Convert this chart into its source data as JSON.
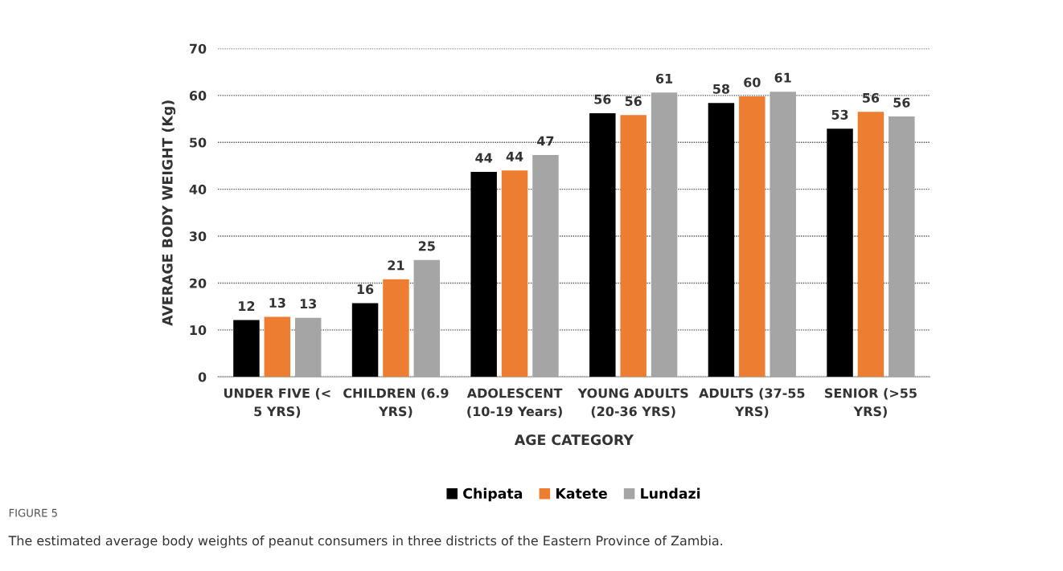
{
  "chart_data": {
    "type": "bar",
    "xlabel": "AGE CATEGORY",
    "ylabel": "AVERAGE BODY WEIGHT (Kg)",
    "categories": [
      "UNDER FIVE (< 5 YRS)",
      "CHILDREN (6.9 YRS)",
      "ADOLESCENT (10-19 Years)",
      "YOUNG ADULTS (20-36 YRS)",
      "ADULTS (37-55 YRS)",
      "SENIOR (>55 YRS)"
    ],
    "series": [
      {
        "name": "Chipata",
        "color": "#000000",
        "values": [
          12.1,
          15.7,
          43.7,
          56.2,
          58.4,
          52.9
        ],
        "value_labels": [
          "12",
          "16",
          "44",
          "56",
          "58",
          "53"
        ]
      },
      {
        "name": "Katete",
        "color": "#ed7d31",
        "values": [
          12.8,
          20.8,
          44.0,
          55.8,
          59.8,
          56.5
        ],
        "value_labels": [
          "13",
          "21",
          "44",
          "56",
          "60",
          "56"
        ]
      },
      {
        "name": "Lundazi",
        "color": "#a5a5a5",
        "values": [
          12.6,
          24.9,
          47.3,
          60.6,
          60.8,
          55.5
        ],
        "value_labels": [
          "13",
          "25",
          "47",
          "61",
          "61",
          "56"
        ]
      }
    ],
    "ylim": [
      0,
      70
    ],
    "yticks": [
      0,
      10,
      20,
      30,
      40,
      50,
      60,
      70
    ],
    "grid": "y",
    "legend": "bottom",
    "annotations": [
      "FIGURE 5",
      "The estimated average body weights of peanut consumers in three districts of the Eastern Province of Zambia."
    ]
  }
}
